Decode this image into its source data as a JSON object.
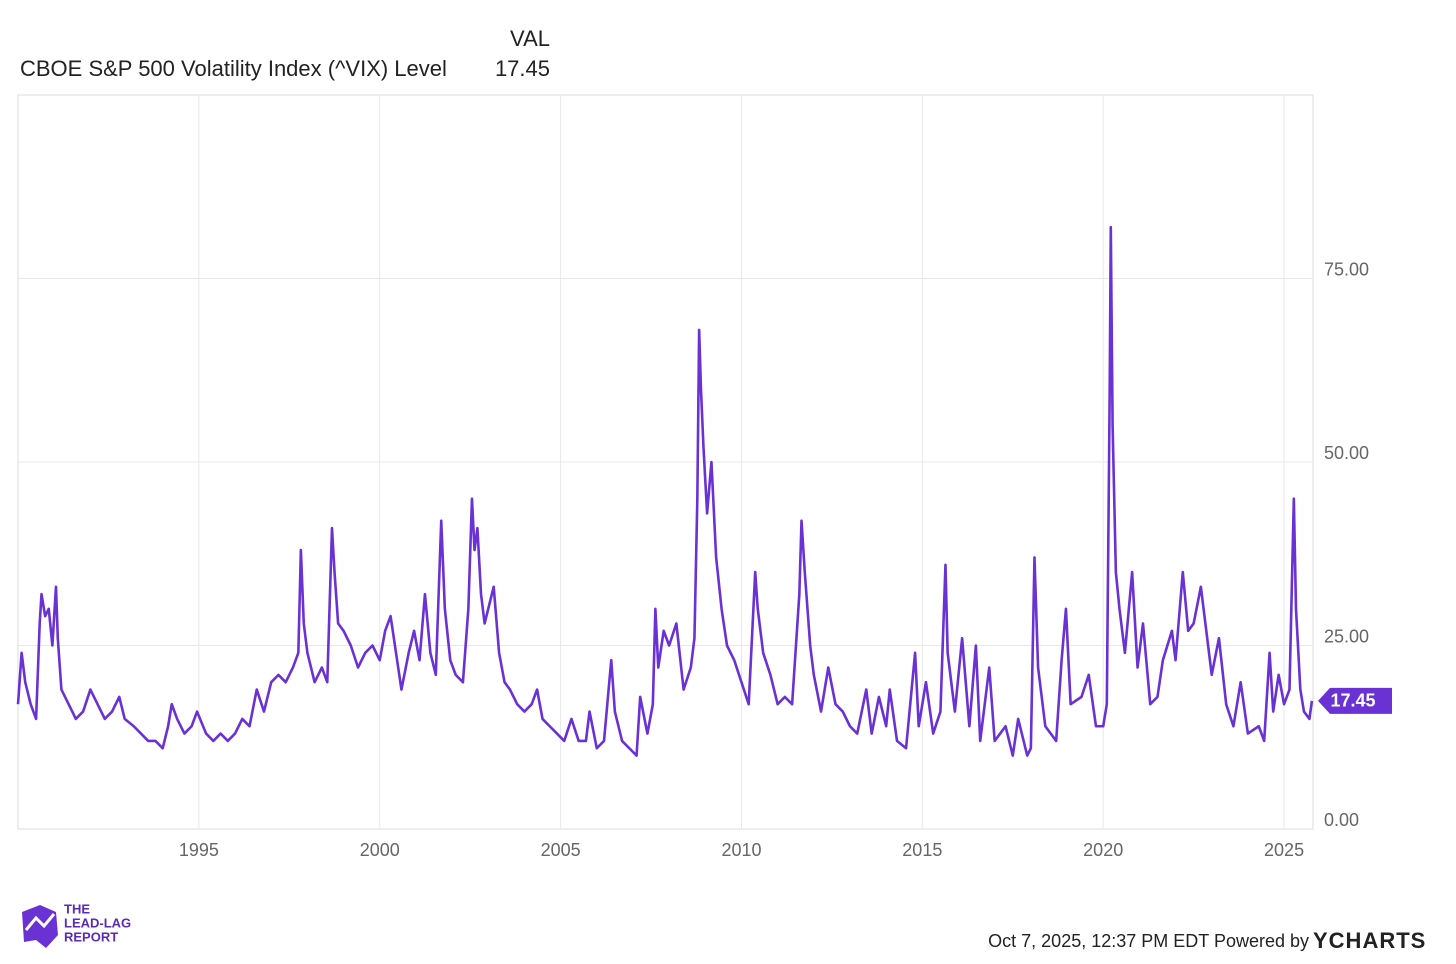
{
  "chart_data": {
    "type": "line",
    "column_header": "VAL",
    "series": [
      {
        "name": "CBOE S&P 500 Volatility Index (^VIX) Level",
        "color": "#6a31d4",
        "values": [
          17,
          24,
          20,
          17,
          15,
          28,
          32,
          29,
          30,
          25,
          33,
          26,
          19,
          17,
          15,
          16,
          19,
          17,
          15,
          16,
          18,
          15,
          14,
          13,
          12,
          12,
          11,
          14,
          17,
          15,
          13,
          14,
          16,
          13,
          12,
          13,
          12,
          13,
          15,
          14,
          19,
          16,
          20,
          21,
          20,
          22,
          24,
          38,
          28,
          24,
          20,
          22,
          20,
          41,
          35,
          28,
          27,
          25,
          22,
          24,
          25,
          23,
          27,
          29,
          24,
          19,
          24,
          27,
          23,
          32,
          24,
          21,
          42,
          30,
          23,
          21,
          20,
          30,
          45,
          38,
          41,
          32,
          28,
          30,
          33,
          24,
          20,
          19,
          17,
          16,
          17,
          19,
          15,
          14,
          13,
          12,
          15,
          12,
          12,
          16,
          11,
          12,
          23,
          16,
          12,
          11,
          10,
          18,
          13,
          17,
          30,
          22,
          27,
          25,
          28,
          19,
          22,
          26,
          45,
          68,
          60,
          52,
          43,
          50,
          37,
          30,
          25,
          23,
          20,
          17,
          35,
          30,
          24,
          21,
          17,
          18,
          17,
          32,
          42,
          35,
          25,
          21,
          16,
          22,
          17,
          16,
          14,
          13,
          19,
          13,
          18,
          14,
          19,
          12,
          11,
          24,
          14,
          20,
          13,
          16,
          36,
          24,
          16,
          26,
          14,
          25,
          12,
          22,
          12,
          14,
          10,
          15,
          10,
          11,
          37,
          22,
          14,
          12,
          23,
          30,
          17,
          18,
          21,
          14,
          14,
          17,
          60,
          82,
          55,
          35,
          30,
          24,
          35,
          22,
          28,
          17,
          18,
          23,
          27,
          23,
          35,
          27,
          28,
          33,
          29,
          21,
          26,
          17,
          14,
          20,
          13,
          14,
          12,
          24,
          16,
          21,
          17,
          19,
          45,
          30,
          19,
          16,
          15,
          17.45
        ]
      }
    ],
    "x": [
      1990.0,
      1990.1,
      1990.2,
      1990.35,
      1990.5,
      1990.6,
      1990.65,
      1990.75,
      1990.85,
      1990.95,
      1991.05,
      1991.1,
      1991.2,
      1991.4,
      1991.6,
      1991.8,
      1992.0,
      1992.2,
      1992.4,
      1992.6,
      1992.8,
      1992.95,
      1993.2,
      1993.4,
      1993.6,
      1993.8,
      1994.0,
      1994.15,
      1994.25,
      1994.4,
      1994.6,
      1994.8,
      1994.95,
      1995.2,
      1995.4,
      1995.6,
      1995.8,
      1996.0,
      1996.2,
      1996.4,
      1996.6,
      1996.8,
      1997.0,
      1997.2,
      1997.4,
      1997.6,
      1997.75,
      1997.82,
      1997.9,
      1998.0,
      1998.2,
      1998.4,
      1998.55,
      1998.68,
      1998.75,
      1998.85,
      1999.0,
      1999.2,
      1999.4,
      1999.6,
      1999.8,
      2000.0,
      2000.15,
      2000.3,
      2000.45,
      2000.6,
      2000.8,
      2000.95,
      2001.1,
      2001.25,
      2001.4,
      2001.55,
      2001.7,
      2001.8,
      2001.95,
      2002.1,
      2002.3,
      2002.45,
      2002.55,
      2002.62,
      2002.7,
      2002.8,
      2002.9,
      2003.0,
      2003.15,
      2003.3,
      2003.45,
      2003.6,
      2003.8,
      2004.0,
      2004.2,
      2004.35,
      2004.5,
      2004.7,
      2004.9,
      2005.1,
      2005.3,
      2005.5,
      2005.7,
      2005.8,
      2006.0,
      2006.2,
      2006.4,
      2006.5,
      2006.7,
      2006.9,
      2007.1,
      2007.2,
      2007.4,
      2007.55,
      2007.62,
      2007.7,
      2007.85,
      2008.0,
      2008.2,
      2008.4,
      2008.6,
      2008.7,
      2008.78,
      2008.83,
      2008.88,
      2008.95,
      2009.05,
      2009.17,
      2009.3,
      2009.45,
      2009.6,
      2009.8,
      2010.0,
      2010.2,
      2010.38,
      2010.45,
      2010.6,
      2010.8,
      2011.0,
      2011.2,
      2011.4,
      2011.6,
      2011.66,
      2011.75,
      2011.9,
      2012.0,
      2012.2,
      2012.4,
      2012.6,
      2012.8,
      2013.0,
      2013.2,
      2013.45,
      2013.6,
      2013.8,
      2014.0,
      2014.1,
      2014.3,
      2014.55,
      2014.8,
      2014.9,
      2015.1,
      2015.3,
      2015.5,
      2015.64,
      2015.7,
      2015.9,
      2016.1,
      2016.3,
      2016.48,
      2016.6,
      2016.85,
      2017.0,
      2017.3,
      2017.5,
      2017.65,
      2017.9,
      2018.0,
      2018.1,
      2018.2,
      2018.4,
      2018.7,
      2018.85,
      2018.97,
      2019.1,
      2019.4,
      2019.6,
      2019.8,
      2020.0,
      2020.1,
      2020.18,
      2020.21,
      2020.26,
      2020.35,
      2020.45,
      2020.6,
      2020.8,
      2020.95,
      2021.1,
      2021.3,
      2021.5,
      2021.65,
      2021.9,
      2022.0,
      2022.2,
      2022.35,
      2022.5,
      2022.7,
      2022.8,
      2023.0,
      2023.2,
      2023.4,
      2023.6,
      2023.8,
      2024.0,
      2024.3,
      2024.45,
      2024.6,
      2024.7,
      2024.85,
      2025.0,
      2025.15,
      2025.27,
      2025.33,
      2025.45,
      2025.55,
      2025.7,
      2025.77
    ],
    "xlim": [
      1990,
      2025.8
    ],
    "xticks": [
      1995,
      2000,
      2005,
      2010,
      2015,
      2020,
      2025
    ],
    "ylim": [
      0,
      100
    ],
    "yticks": [
      {
        "value": 0,
        "label": "0.00"
      },
      {
        "value": 25,
        "label": "25.00"
      },
      {
        "value": 50,
        "label": "50.00"
      },
      {
        "value": 75,
        "label": "75.00"
      }
    ],
    "grid": true,
    "footer": "Oct 7, 2025, 12:37 PM EDT Powered by",
    "brand": "YCHARTS",
    "logo": [
      "THE",
      "LEAD-LAG",
      "REPORT"
    ]
  }
}
